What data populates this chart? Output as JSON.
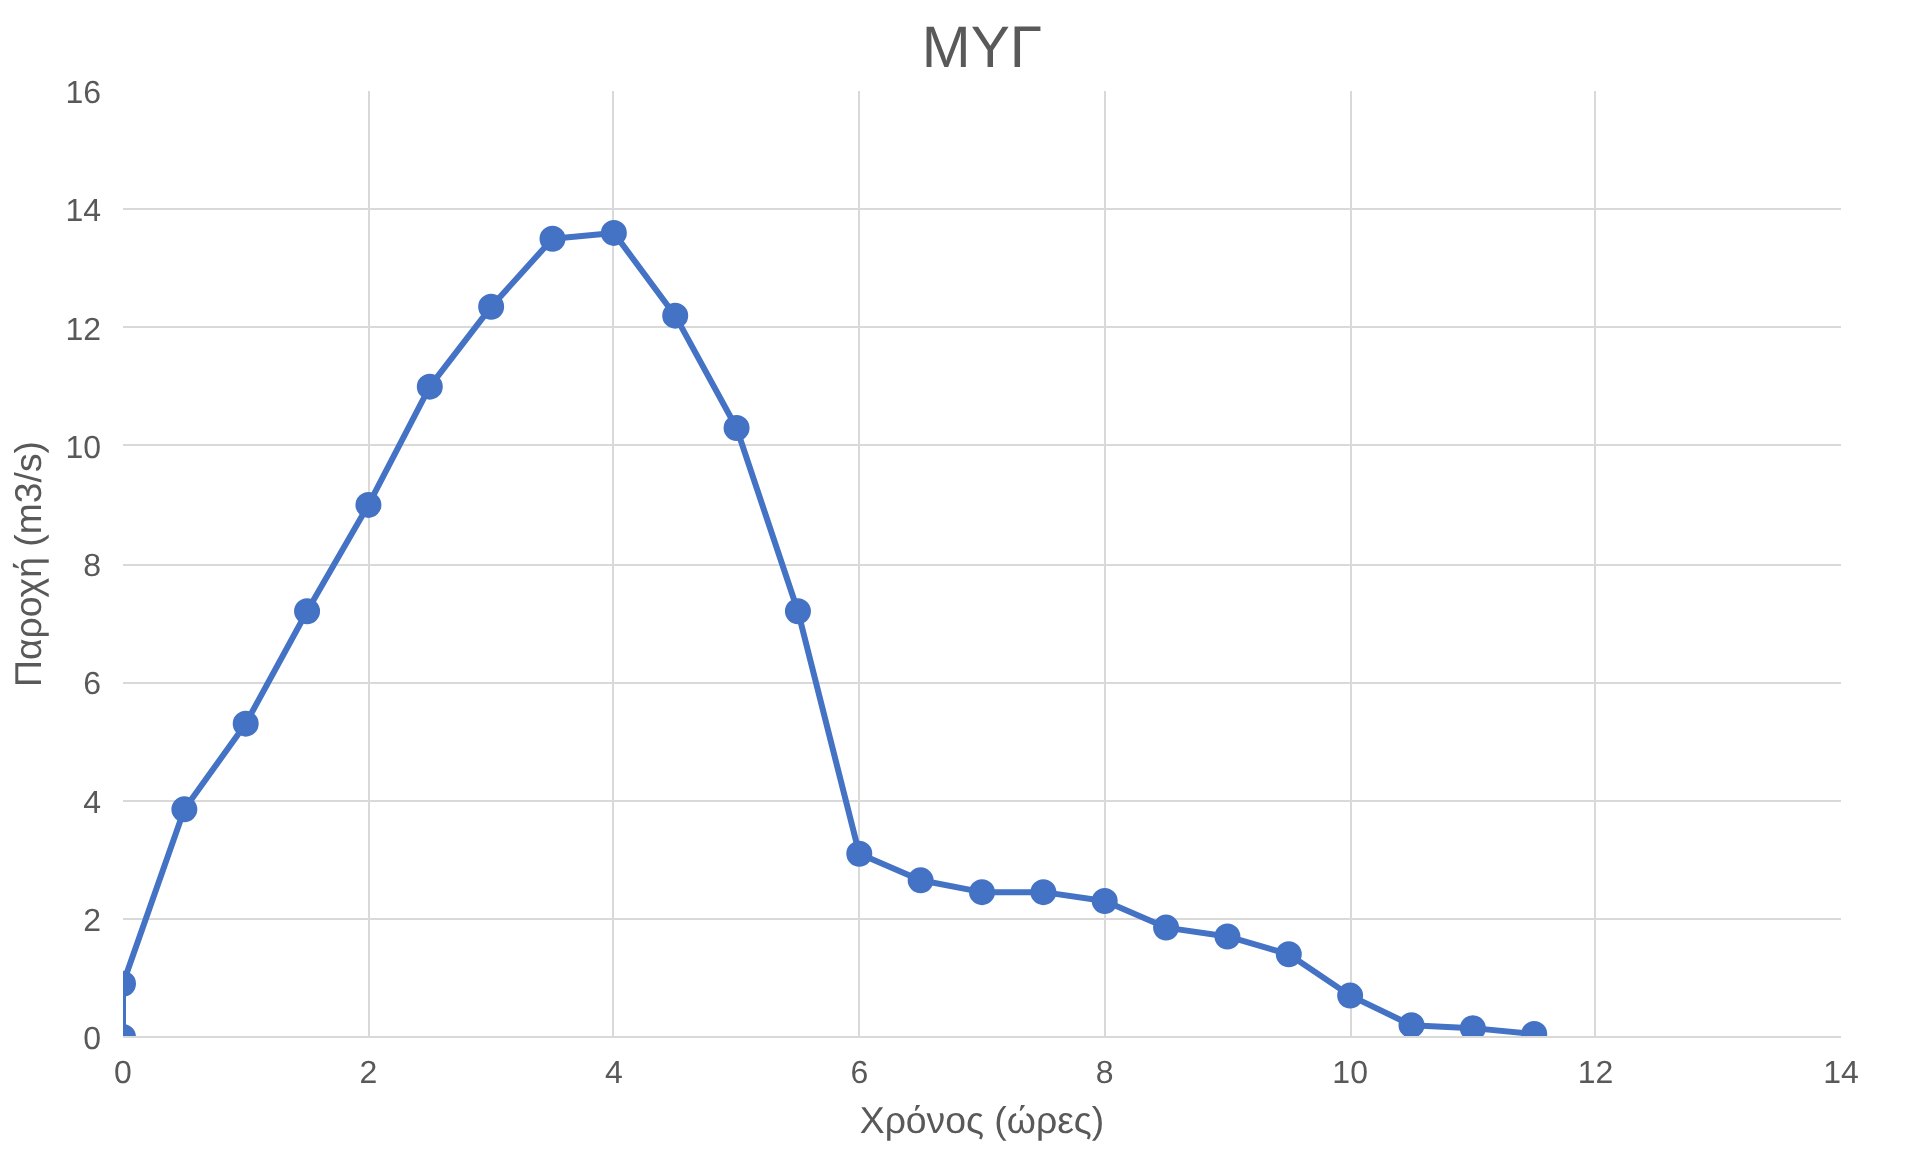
{
  "chart_data": {
    "type": "line",
    "title": "ΜΥΓ",
    "xlabel": "Χρόνος (ώρες)",
    "ylabel": "Παροχή (m3/s)",
    "x": [
      0,
      0,
      0.5,
      1,
      1.5,
      2,
      2.5,
      3,
      3.5,
      4,
      4.5,
      5,
      5.5,
      6,
      6.5,
      7,
      7.5,
      8,
      8.5,
      9,
      9.5,
      10,
      10.5,
      11,
      11.5
    ],
    "series": [
      {
        "color": "#4472c4",
        "values": [
          0,
          0.9,
          3.85,
          5.3,
          7.2,
          9.0,
          11.0,
          12.35,
          13.5,
          13.6,
          12.2,
          10.3,
          7.2,
          3.1,
          2.65,
          2.45,
          2.45,
          2.3,
          1.85,
          1.7,
          1.4,
          0.7,
          0.2,
          0.15,
          0.05
        ]
      }
    ],
    "xlim": [
      0,
      14
    ],
    "xticks": [
      0,
      2,
      4,
      6,
      8,
      10,
      12,
      14
    ],
    "ylim": [
      0,
      16
    ],
    "yticks": [
      0,
      2,
      4,
      6,
      8,
      10,
      12,
      14,
      16
    ],
    "grid": true,
    "marker": "circle",
    "line_style": "solid"
  }
}
